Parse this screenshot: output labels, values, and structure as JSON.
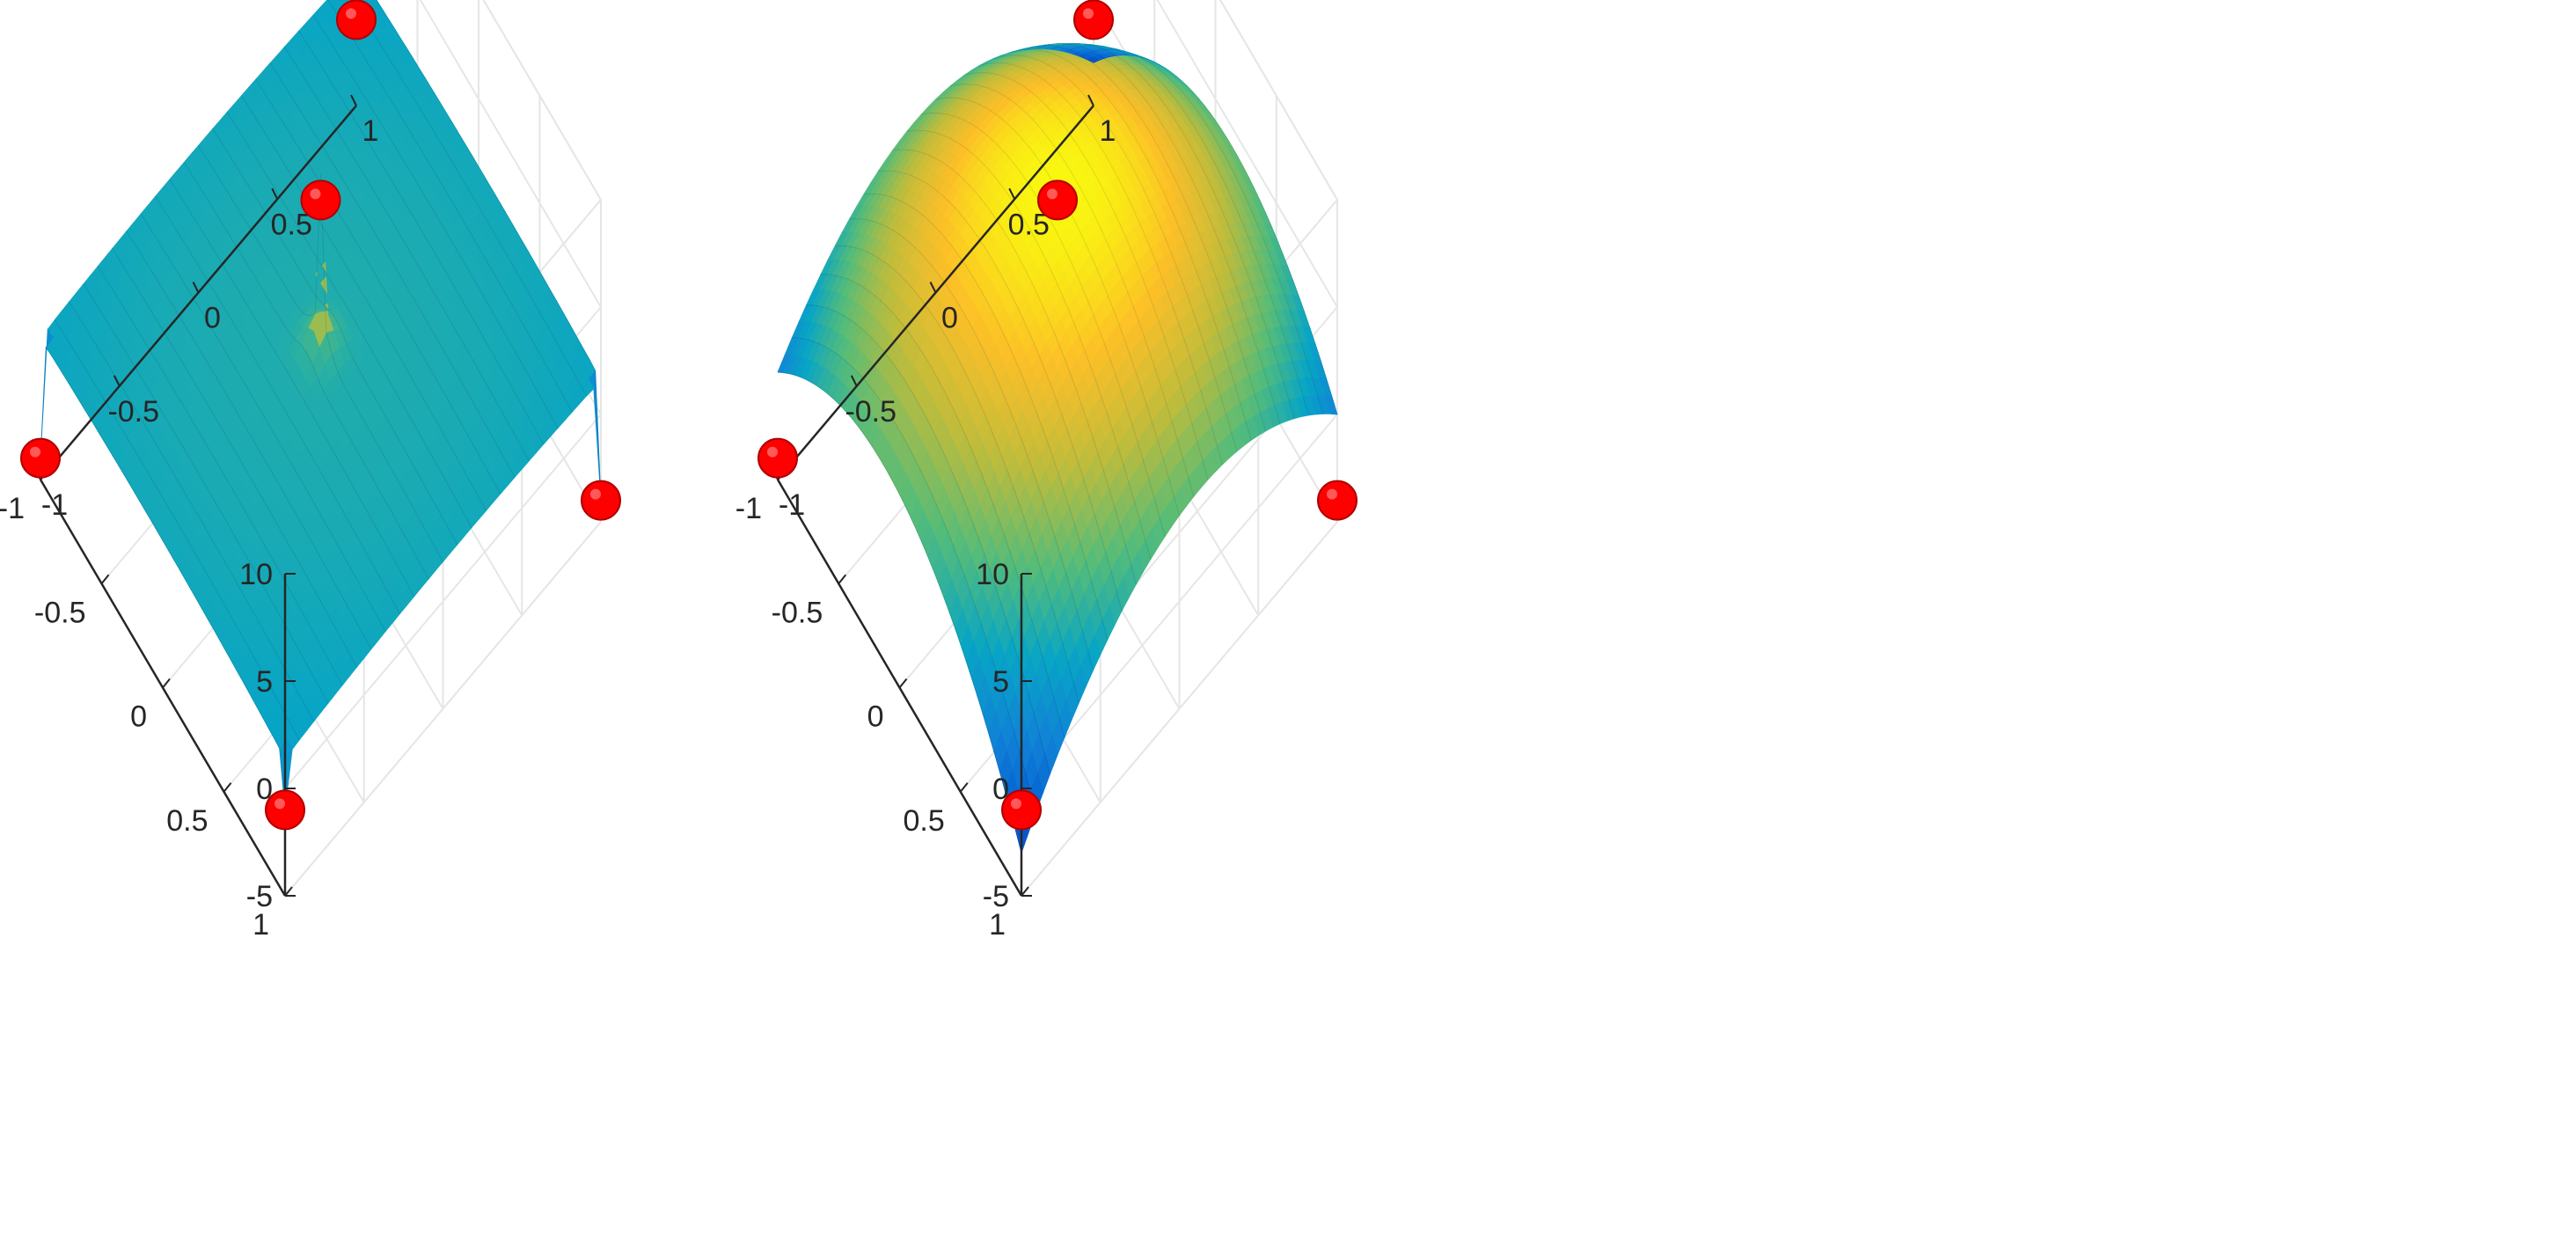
{
  "chart_data": [
    {
      "type": "surface3d",
      "title": "",
      "xlabel": "",
      "ylabel": "",
      "zlabel": "",
      "xlim": [
        -1,
        1
      ],
      "ylim": [
        -1,
        1
      ],
      "zlim": [
        -5,
        10
      ],
      "x_ticks": [
        "-1",
        "-0.5",
        "0",
        "0.5",
        "1"
      ],
      "y_ticks": [
        "-1",
        "-0.5",
        "0",
        "0.5",
        "1"
      ],
      "z_ticks": [
        "-5",
        "0",
        "5",
        "10"
      ],
      "grid": true,
      "colormap": "parula",
      "surface": "nearly flat surface (z ~ 1.7 to 2.2) with sharp spikes reaching each data point",
      "points": [
        {
          "x": 0,
          "y": 0,
          "z": 9
        },
        {
          "x": -1,
          "y": 1,
          "z": -1
        },
        {
          "x": 1,
          "y": -1,
          "z": -1
        },
        {
          "x": -1,
          "y": -1,
          "z": -4
        },
        {
          "x": 1,
          "y": 1,
          "z": -4
        }
      ],
      "point_color": "#ff0000"
    },
    {
      "type": "surface3d",
      "title": "",
      "xlabel": "",
      "ylabel": "",
      "zlabel": "",
      "xlim": [
        -1,
        1
      ],
      "ylim": [
        -1,
        1
      ],
      "zlim": [
        -5,
        10
      ],
      "x_ticks": [
        "-1",
        "-0.5",
        "0",
        "0.5",
        "1"
      ],
      "y_ticks": [
        "-1",
        "-0.5",
        "0",
        "0.5",
        "1"
      ],
      "z_ticks": [
        "-5",
        "0",
        "5",
        "10"
      ],
      "grid": true,
      "colormap": "parula",
      "surface": "smooth dome interpolating all data points, peak ~9.5 at center",
      "points": [
        {
          "x": 0,
          "y": 0,
          "z": 9
        },
        {
          "x": -1,
          "y": 1,
          "z": -1
        },
        {
          "x": 1,
          "y": -1,
          "z": -1
        },
        {
          "x": -1,
          "y": -1,
          "z": -4
        },
        {
          "x": 1,
          "y": 1,
          "z": -4
        }
      ],
      "point_color": "#ff0000"
    }
  ]
}
